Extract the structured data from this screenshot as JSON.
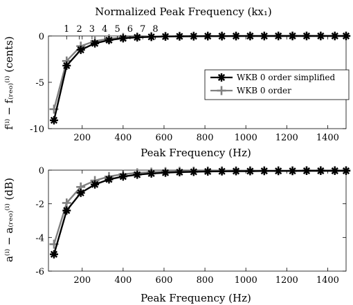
{
  "chart_data": [
    {
      "type": "line",
      "top_axis": {
        "label": "Normalized Peak Frequency (kx₁)",
        "ticks": [
          "1",
          "2",
          "3",
          "4",
          "5",
          "6",
          "7",
          "8"
        ]
      },
      "xlabel": "Peak Frequency (Hz)",
      "ylabel": "f⁽ⁱ⁾ − f₍ᵣₑₒ₎⁽ⁱ⁾ (cents)",
      "xlim": [
        35,
        1490
      ],
      "ylim": [
        -10,
        0
      ],
      "xticks": [
        200,
        400,
        600,
        800,
        1000,
        1200,
        1400
      ],
      "yticks": [
        0,
        -5,
        -10
      ],
      "x": [
        62,
        124,
        193,
        262,
        331,
        400,
        469,
        538,
        607,
        676,
        745,
        814,
        883,
        952,
        1021,
        1090,
        1159,
        1228,
        1297,
        1366,
        1435,
        1490
      ],
      "series": [
        {
          "name": "WKB 0 order simplified",
          "color": "#000000",
          "marker": "asterisk",
          "values": [
            -9.1,
            -3.2,
            -1.5,
            -0.8,
            -0.45,
            -0.25,
            -0.15,
            -0.1,
            -0.06,
            -0.04,
            -0.03,
            -0.02,
            -0.02,
            -0.01,
            -0.01,
            -0.01,
            0,
            0,
            0,
            0,
            0,
            0
          ]
        },
        {
          "name": "WKB 0 order",
          "color": "#808080",
          "marker": "plus",
          "values": [
            -7.9,
            -2.7,
            -1.1,
            -0.55,
            -0.3,
            -0.16,
            -0.1,
            -0.06,
            -0.04,
            -0.03,
            -0.02,
            -0.01,
            -0.01,
            -0.01,
            0,
            0,
            0,
            0,
            0,
            0,
            0,
            0
          ]
        }
      ],
      "legend": "center-right",
      "grid": false
    },
    {
      "type": "line",
      "xlabel": "Peak Frequency (Hz)",
      "ylabel": "a⁽ⁱ⁾ − a₍ᵣₑₒ₎⁽ⁱ⁾ (dB)",
      "xlim": [
        35,
        1490
      ],
      "ylim": [
        -6,
        0
      ],
      "xticks": [
        200,
        400,
        600,
        800,
        1000,
        1200,
        1400
      ],
      "yticks": [
        0,
        -2,
        -4,
        -6
      ],
      "x": [
        62,
        124,
        193,
        262,
        331,
        400,
        469,
        538,
        607,
        676,
        745,
        814,
        883,
        952,
        1021,
        1090,
        1159,
        1228,
        1297,
        1366,
        1435,
        1490
      ],
      "series": [
        {
          "name": "WKB 0 order simplified",
          "color": "#000000",
          "marker": "asterisk",
          "values": [
            -5.0,
            -2.4,
            -1.35,
            -0.85,
            -0.55,
            -0.38,
            -0.27,
            -0.2,
            -0.15,
            -0.12,
            -0.1,
            -0.08,
            -0.07,
            -0.06,
            -0.06,
            -0.05,
            -0.05,
            -0.05,
            -0.04,
            -0.04,
            -0.04,
            -0.04
          ]
        },
        {
          "name": "WKB 0 order",
          "color": "#808080",
          "marker": "plus",
          "values": [
            -4.4,
            -1.95,
            -1.0,
            -0.62,
            -0.38,
            -0.24,
            -0.16,
            -0.12,
            -0.09,
            -0.07,
            -0.06,
            -0.05,
            -0.04,
            -0.04,
            -0.03,
            -0.03,
            -0.03,
            -0.03,
            -0.02,
            -0.02,
            -0.02,
            -0.02
          ]
        }
      ],
      "grid": false
    }
  ]
}
